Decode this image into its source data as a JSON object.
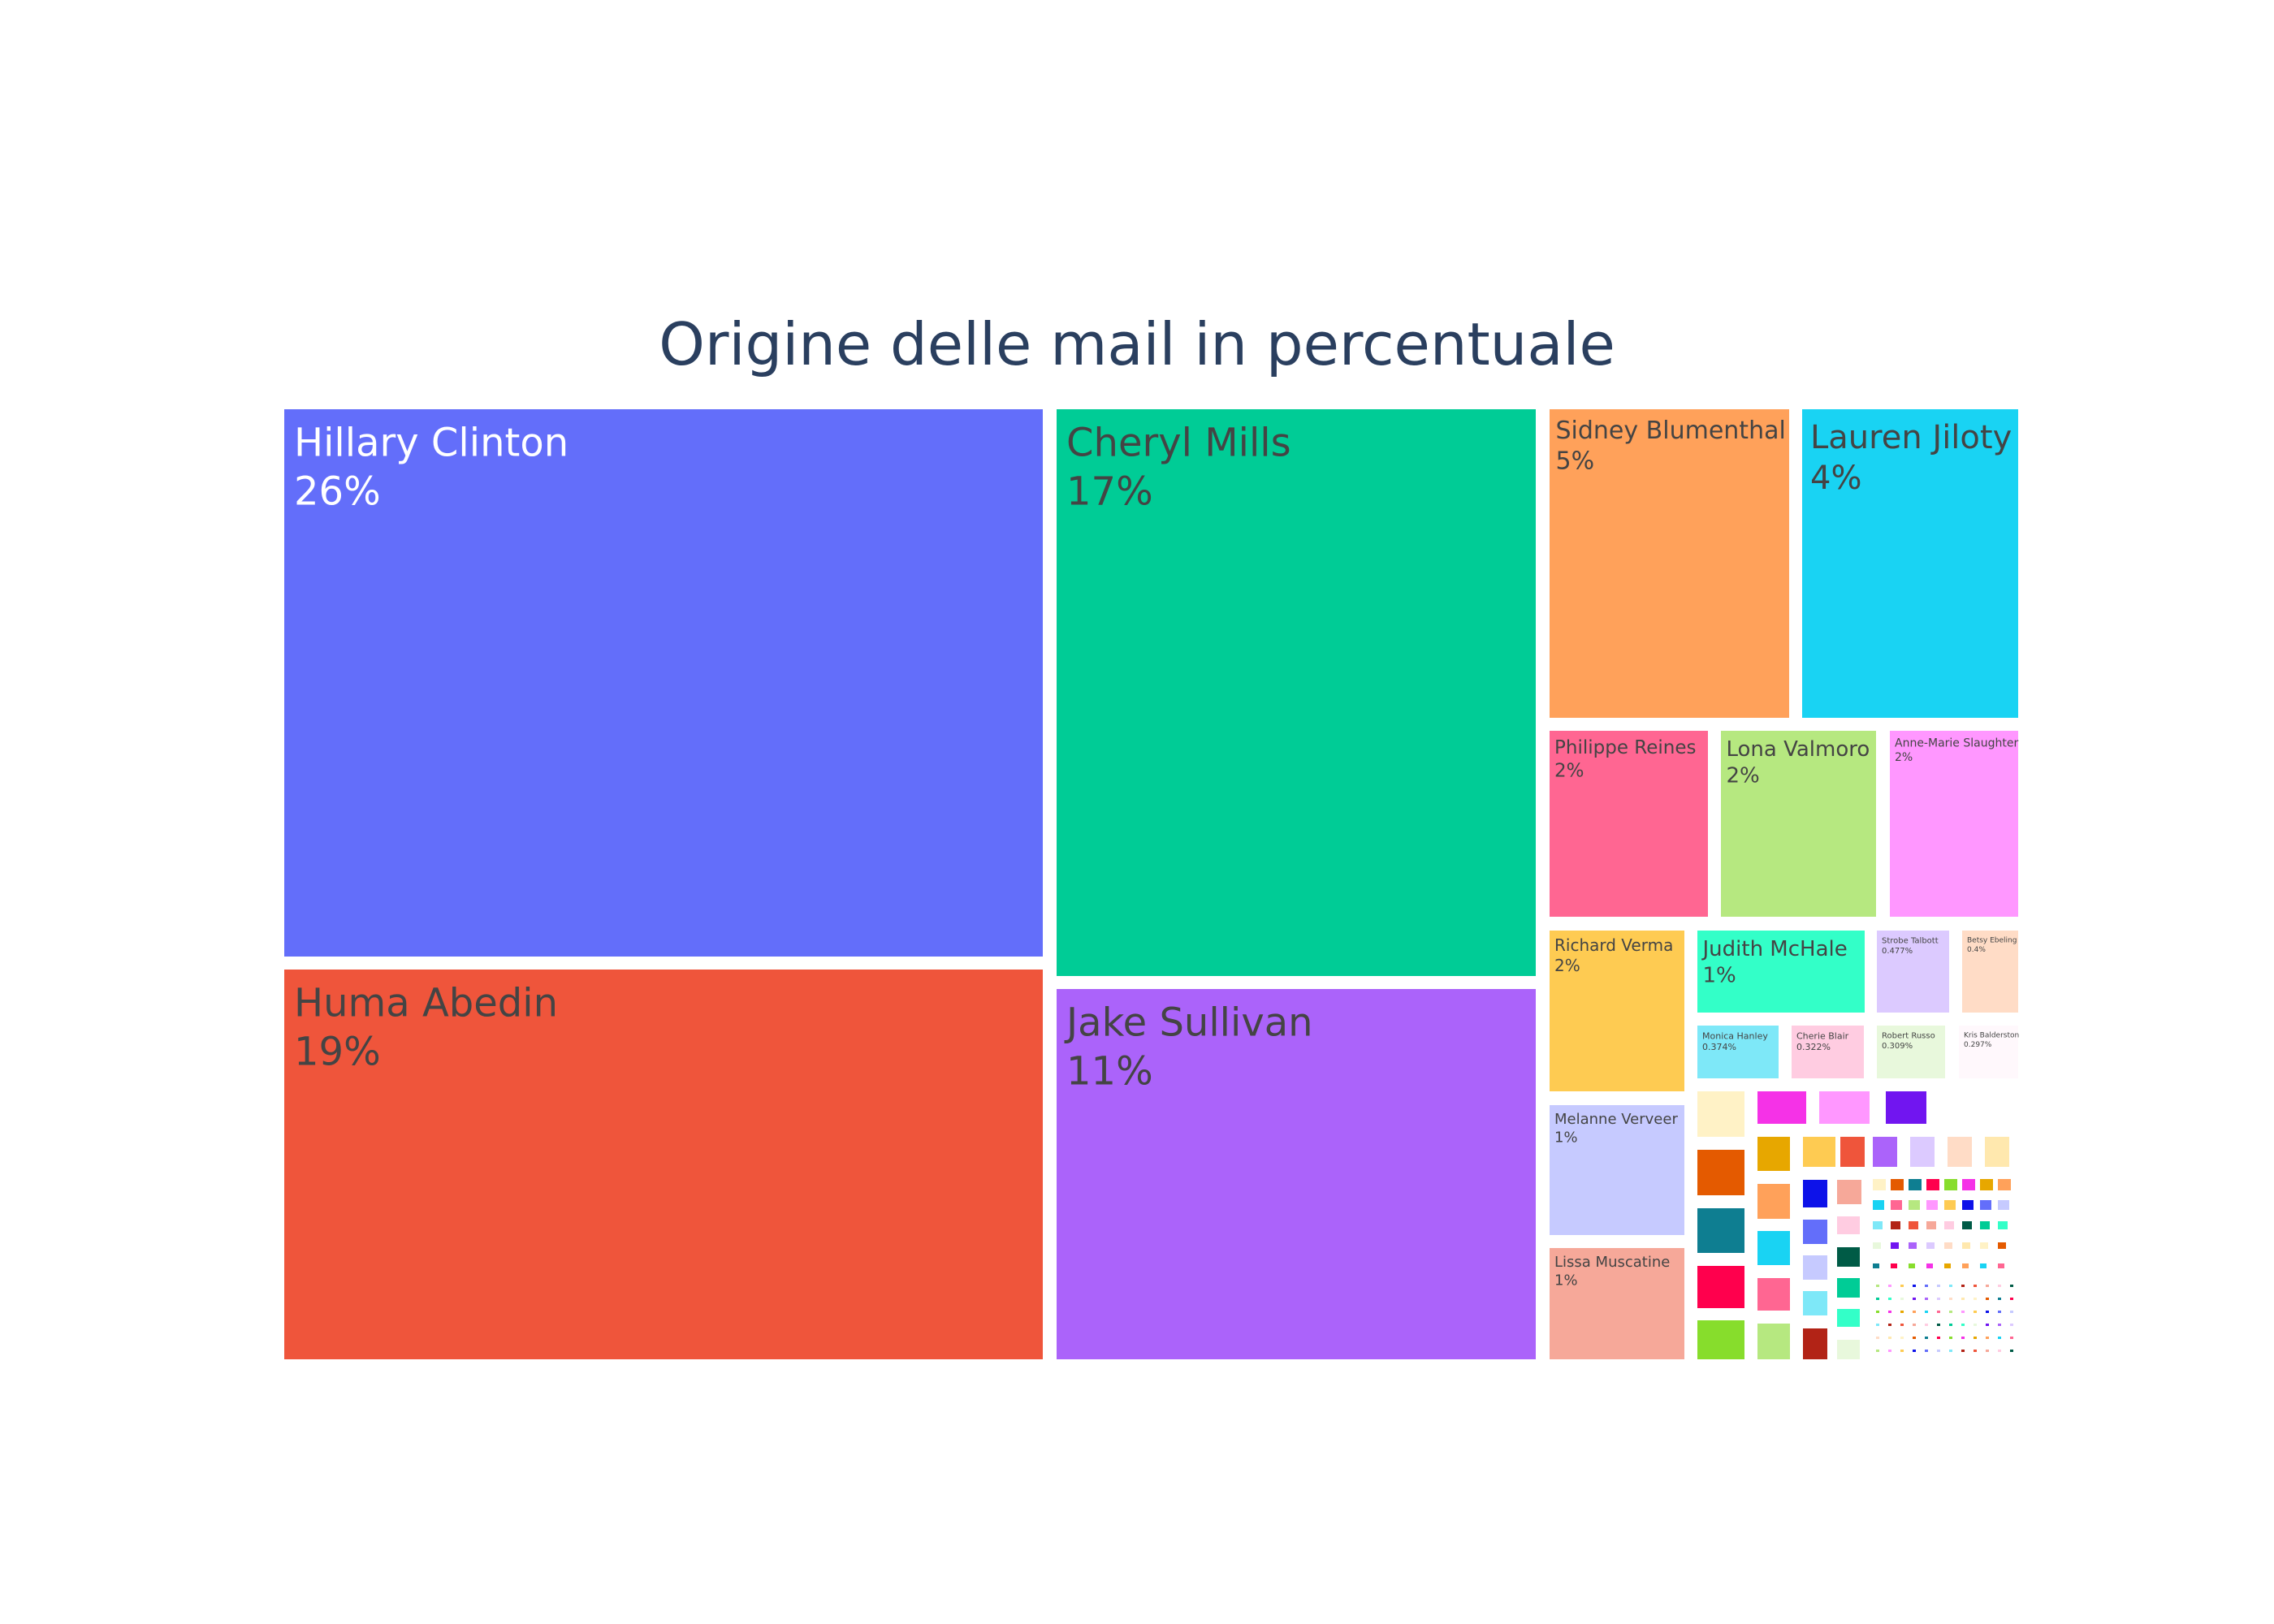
{
  "chart_data": {
    "type": "treemap",
    "title": "Origine delle mail in percentuale",
    "tiles": [
      {
        "name": "Hillary Clinton",
        "value_label": "26%",
        "color": "#636efa"
      },
      {
        "name": "Huma Abedin",
        "value_label": "19%",
        "color": "#ef553b"
      },
      {
        "name": "Cheryl Mills",
        "value_label": "17%",
        "color": "#00cc96"
      },
      {
        "name": "Jake Sullivan",
        "value_label": "11%",
        "color": "#ab63fa"
      },
      {
        "name": "Sidney Blumenthal",
        "value_label": "5%",
        "color": "#ffa15a"
      },
      {
        "name": "Lauren Jiloty",
        "value_label": "4%",
        "color": "#19d3f3"
      },
      {
        "name": "Philippe Reines",
        "value_label": "2%",
        "color": "#ff6692"
      },
      {
        "name": "Lona Valmoro",
        "value_label": "2%",
        "color": "#b6e880"
      },
      {
        "name": "Anne-Marie Slaughter",
        "value_label": "2%",
        "color": "#ff97ff"
      },
      {
        "name": "Richard Verma",
        "value_label": "2%",
        "color": "#fecb52"
      },
      {
        "name": "Judith McHale",
        "value_label": "1%",
        "color": "#33ffc8"
      },
      {
        "name": "Strobe Talbott",
        "value_label": "0.477%",
        "color": "#dccaff"
      },
      {
        "name": "Betsy Ebeling",
        "value_label": "0.4%",
        "color": "#ffdcc6"
      },
      {
        "name": "Melanne Verveer",
        "value_label": "1%",
        "color": "#c6caff"
      },
      {
        "name": "Monica Hanley",
        "value_label": "0.374%",
        "color": "#7ee8f8"
      },
      {
        "name": "Cherie Blair",
        "value_label": "0.322%",
        "color": "#ffcce1"
      },
      {
        "name": "Robert Russo",
        "value_label": "0.309%",
        "color": "#e8f8dc"
      },
      {
        "name": "Kris Balderston",
        "value_label": "0.297%",
        "color": "#fff8fc"
      },
      {
        "name": "Lissa Muscatine",
        "value_label": "1%",
        "color": "#f6a899"
      }
    ]
  }
}
